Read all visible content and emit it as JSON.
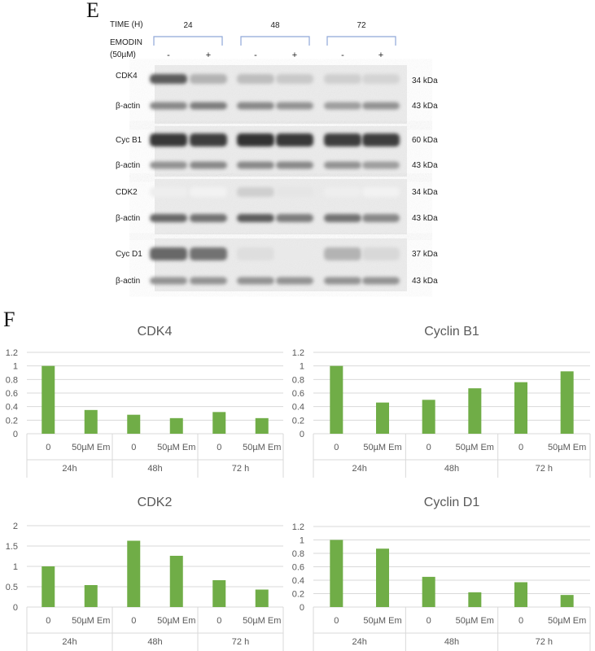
{
  "panel_e": {
    "letter": "E",
    "time_label": "TIME (H)",
    "times": [
      "24",
      "48",
      "72"
    ],
    "treatment_label_1": "EMODIN",
    "treatment_label_2": "(50µM)",
    "lanes": [
      "-",
      "+",
      "-",
      "+",
      "-",
      "+"
    ],
    "rows": [
      {
        "protein": "CDK4",
        "size": "34 kDa"
      },
      {
        "protein": "β-actin",
        "size": "43 kDa"
      },
      {
        "protein": "Cyc B1",
        "size": "60 kDa"
      },
      {
        "protein": "β-actin",
        "size": "43 kDa"
      },
      {
        "protein": "CDK2",
        "size": "34 kDa"
      },
      {
        "protein": "β-actin",
        "size": "43 kDa"
      },
      {
        "protein": "Cyc D1",
        "size": "37 kDa"
      },
      {
        "protein": "β-actin",
        "size": "43 kDa"
      }
    ],
    "bracket_color": "#8fa8d8"
  },
  "panel_f": {
    "letter": "F"
  },
  "chart_data": [
    {
      "type": "bar",
      "title": "CDK4",
      "categories": [
        "0",
        "50µM Em",
        "0",
        "50µM Em",
        "0",
        "50µM Em"
      ],
      "groups": [
        "24h",
        "48h",
        "72 h"
      ],
      "values": [
        1.0,
        0.35,
        0.28,
        0.23,
        0.32,
        0.23
      ],
      "ylim": [
        0,
        1.2
      ],
      "yticks": [
        "0",
        "0.2",
        "0.4",
        "0.6",
        "0.8",
        "1",
        "1.2"
      ],
      "grid": true,
      "color": "#70ad47"
    },
    {
      "type": "bar",
      "title": "Cyclin B1",
      "categories": [
        "0",
        "50µM Em",
        "0",
        "50µM Em",
        "0",
        "50µM Em"
      ],
      "groups": [
        "24h",
        "48h",
        "72 h"
      ],
      "values": [
        1.0,
        0.46,
        0.5,
        0.67,
        0.76,
        0.92
      ],
      "ylim": [
        0,
        1.2
      ],
      "yticks": [
        "0",
        "0.2",
        "0.4",
        "0.6",
        "0.8",
        "1",
        "1.2"
      ],
      "grid": true,
      "color": "#70ad47"
    },
    {
      "type": "bar",
      "title": "CDK2",
      "categories": [
        "0",
        "50µM Em",
        "0",
        "50µM Em",
        "0",
        "50µM Em"
      ],
      "groups": [
        "24h",
        "48h",
        "72 h"
      ],
      "values": [
        1.0,
        0.54,
        1.63,
        1.26,
        0.66,
        0.43
      ],
      "ylim": [
        0,
        2
      ],
      "yticks": [
        "0",
        "0.5",
        "1",
        "1.5",
        "2"
      ],
      "grid": true,
      "color": "#70ad47"
    },
    {
      "type": "bar",
      "title": "Cyclin D1",
      "categories": [
        "0",
        "50µM Em",
        "0",
        "50µM Em",
        "0",
        "50µM Em"
      ],
      "groups": [
        "24h",
        "48h",
        "72 h"
      ],
      "values": [
        1.0,
        0.87,
        0.45,
        0.22,
        0.37,
        0.18
      ],
      "ylim": [
        0,
        1.2
      ],
      "yticks": [
        "0",
        "0.2",
        "0.4",
        "0.6",
        "0.8",
        "1",
        "1.2"
      ],
      "grid": true,
      "color": "#70ad47"
    }
  ]
}
